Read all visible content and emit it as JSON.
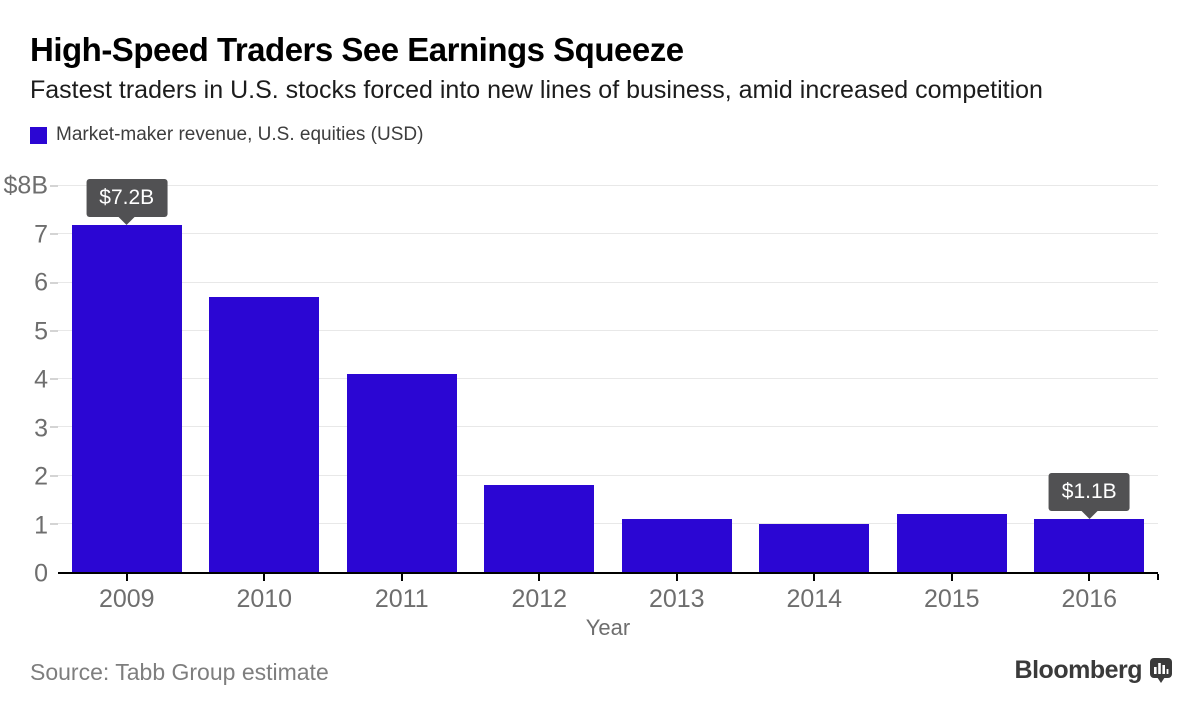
{
  "chart_data": {
    "type": "bar",
    "title": "High-Speed Traders See Earnings Squeeze",
    "subtitle": "Fastest traders in U.S. stocks forced into new lines of business, amid increased competition",
    "legend_label": "Market-maker revenue, U.S. equities (USD)",
    "legend_position": "top-left",
    "categories": [
      "2009",
      "2010",
      "2011",
      "2012",
      "2013",
      "2014",
      "2015",
      "2016"
    ],
    "values": [
      7.2,
      5.7,
      4.1,
      1.8,
      1.1,
      1.0,
      1.2,
      1.1
    ],
    "xlabel": "Year",
    "ylabel": "",
    "ylim": [
      0,
      8
    ],
    "ytick_labels": [
      "0",
      "1",
      "2",
      "3",
      "4",
      "5",
      "6",
      "7",
      "$8B"
    ],
    "grid": true,
    "bar_color": "#2B06D3",
    "annotations": [
      {
        "index": 0,
        "label": "$7.2B"
      },
      {
        "index": 7,
        "label": "$1.1B"
      }
    ],
    "source": "Source: Tabb Group estimate",
    "brand": "Bloomberg",
    "brand_icon": "bar-chart-speech-bubble"
  },
  "colors": {
    "bar_blue": "#2B06D3",
    "tooltip_bg": "#515153",
    "axis_black": "#000000",
    "grid_gray": "#e8e8e8",
    "tick_label_gray": "#6e6e6e",
    "source_gray": "#7e7e7e",
    "brand_gray": "#3a3a3a"
  }
}
